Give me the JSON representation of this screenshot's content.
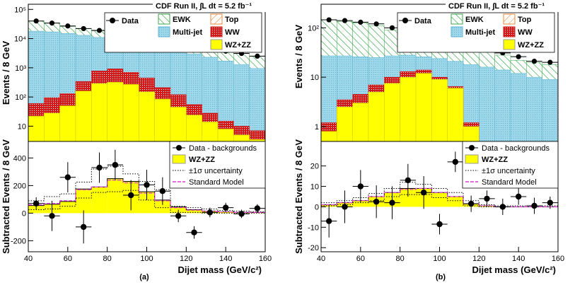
{
  "colors": {
    "multijet": "#9ed7ea",
    "ww": "#d21a1a",
    "wzzz": "#ffff00",
    "ewk": "#3aa84a",
    "top": "#f0883a",
    "sm": "#e23ad6"
  },
  "chart_data": [
    {
      "type": "bar",
      "title": "CDF Run II, ∫L dt = 5.2 fb⁻¹",
      "panel_label": "(a)",
      "xlabel": "Dijet mass (GeV/c²)",
      "top": {
        "ylabel": "Events / 8 GeV",
        "yscale": "log",
        "ylim": [
          3,
          150000
        ],
        "yticks": [
          {
            "v": 10,
            "t": "10"
          },
          {
            "v": 100,
            "t": "10²"
          },
          {
            "v": 1000,
            "t": "10³"
          },
          {
            "v": 10000,
            "t": "10⁴"
          },
          {
            "v": 100000,
            "t": "10⁵"
          }
        ],
        "legend": {
          "data": "Data",
          "ewk": "EWK",
          "top": "Top",
          "multijet": "Multi-jet",
          "ww": "WW",
          "wzzz": "WZ+ZZ"
        },
        "bin_edges": [
          40,
          48,
          56,
          64,
          72,
          80,
          88,
          96,
          104,
          112,
          120,
          128,
          136,
          144,
          152,
          160
        ],
        "stack": {
          "wzzz": [
            22,
            28,
            50,
            160,
            290,
            320,
            270,
            150,
            85,
            45,
            24,
            14,
            8,
            5,
            3.5
          ],
          "ww": [
            60,
            95,
            130,
            340,
            780,
            920,
            700,
            450,
            210,
            120,
            55,
            28,
            15,
            10,
            7
          ],
          "top": [
            72,
            110,
            160,
            380,
            820,
            960,
            740,
            480,
            240,
            160,
            100,
            80,
            60,
            45,
            35
          ],
          "multijet": [
            18000,
            17000,
            15000,
            13000,
            11000,
            9000,
            7500,
            6200,
            5000,
            3800,
            3000,
            2300,
            1700,
            1300,
            950
          ],
          "ewk": [
            40000,
            34000,
            26000,
            22000,
            18500,
            15000,
            12500,
            10200,
            8000,
            6500,
            5400,
            4400,
            3700,
            3100,
            2500
          ]
        },
        "data_points": [
          40000,
          34000,
          27000,
          22000,
          19000,
          15500,
          13000,
          10500,
          8500,
          7000,
          5500,
          4500,
          3700,
          3100,
          2500
        ]
      },
      "bottom": {
        "ylabel": "Subtracted Events / 8 GeV",
        "ylim": [
          -280,
          520
        ],
        "yticks": [
          {
            "v": -200,
            "t": "-200"
          },
          {
            "v": 0,
            "t": "0"
          },
          {
            "v": 200,
            "t": "200"
          },
          {
            "v": 400,
            "t": "400"
          }
        ],
        "xticks": [
          40,
          60,
          80,
          100,
          120,
          140,
          160
        ],
        "legend": {
          "data": "Data - backgrounds",
          "wzzz": "WZ+ZZ",
          "unc": "±1σ uncertainty",
          "sm": "Standard Model"
        },
        "points": [
          {
            "x": 44,
            "y": 70,
            "err": 45
          },
          {
            "x": 52,
            "y": -20,
            "err": 110
          },
          {
            "x": 60,
            "y": 260,
            "err": 110
          },
          {
            "x": 68,
            "y": -100,
            "err": 120
          },
          {
            "x": 76,
            "y": 330,
            "err": 110
          },
          {
            "x": 84,
            "y": 350,
            "err": 110
          },
          {
            "x": 92,
            "y": 130,
            "err": 110
          },
          {
            "x": 100,
            "y": 205,
            "err": 110
          },
          {
            "x": 108,
            "y": 160,
            "err": 100
          },
          {
            "x": 116,
            "y": -20,
            "err": 45
          },
          {
            "x": 124,
            "y": -140,
            "err": 45
          },
          {
            "x": 132,
            "y": 5,
            "err": 35
          },
          {
            "x": 140,
            "y": 40,
            "err": 35
          },
          {
            "x": 148,
            "y": -5,
            "err": 30
          },
          {
            "x": 156,
            "y": 35,
            "err": 30
          }
        ],
        "wzzz_hist": [
          55,
          65,
          85,
          175,
          190,
          250,
          230,
          155,
          95,
          45,
          25,
          15,
          10,
          5,
          5
        ],
        "unc_hi": [
          90,
          120,
          140,
          225,
          320,
          340,
          285,
          230,
          170,
          50,
          40,
          30,
          20,
          15,
          10
        ],
        "unc_lo": [
          25,
          30,
          50,
          110,
          150,
          155,
          165,
          95,
          40,
          5,
          5,
          0,
          0,
          0,
          0
        ],
        "sm_hist": [
          60,
          70,
          90,
          170,
          190,
          240,
          220,
          145,
          90,
          40,
          22,
          14,
          9,
          5,
          5
        ]
      }
    },
    {
      "type": "bar",
      "title": "CDF Run II, ∫L dt = 5.2 fb⁻¹",
      "panel_label": "(b)",
      "xlabel": "Dijet mass (GeV/c²)",
      "top": {
        "ylabel": "Events / 8 GeV",
        "yscale": "log",
        "ylim": [
          0.5,
          300
        ],
        "yticks": [
          {
            "v": 1,
            "t": "1"
          },
          {
            "v": 10,
            "t": "10"
          },
          {
            "v": 100,
            "t": "10²"
          }
        ],
        "legend": {
          "data": "Data",
          "ewk": "EWK",
          "top": "Top",
          "multijet": "Multi-jet",
          "ww": "WW",
          "wzzz": "WZ+ZZ"
        },
        "bin_edges": [
          40,
          48,
          56,
          64,
          72,
          80,
          88,
          96,
          104,
          112,
          120,
          128,
          136,
          144,
          152,
          160
        ],
        "stack": {
          "wzzz": [
            0.8,
            2.5,
            3,
            5,
            7.5,
            10,
            12,
            9,
            6,
            1,
            0,
            0,
            0,
            0,
            0
          ],
          "ww": [
            1.2,
            3.5,
            4.5,
            7,
            10,
            13,
            14,
            10,
            6.5,
            1.2,
            0,
            0,
            0,
            0,
            0
          ],
          "top": [
            13,
            13.5,
            13.5,
            13,
            13,
            13,
            12.5,
            11,
            9,
            8,
            7,
            6,
            5,
            4.5,
            4
          ],
          "multijet": [
            27,
            27,
            26,
            25,
            27,
            28,
            26,
            24,
            21,
            18,
            16,
            14,
            12,
            10,
            9
          ],
          "ewk": [
            145,
            135,
            125,
            110,
            90,
            80,
            70,
            58,
            50,
            40,
            35,
            28,
            22,
            20,
            18
          ]
        },
        "data_points": [
          145,
          140,
          130,
          120,
          100,
          95,
          80,
          70,
          62,
          40,
          38,
          31,
          26,
          21,
          20
        ]
      },
      "bottom": {
        "ylabel": "Subtracted Events / 8 GeV",
        "ylim": [
          -22,
          32
        ],
        "yticks": [
          {
            "v": -20,
            "t": "-20"
          },
          {
            "v": -10,
            "t": "-10"
          },
          {
            "v": 0,
            "t": "0"
          },
          {
            "v": 10,
            "t": "10"
          },
          {
            "v": 20,
            "t": "20"
          }
        ],
        "xticks": [
          40,
          60,
          80,
          100,
          120,
          140,
          160
        ],
        "legend": {
          "data": "Data - backgrounds",
          "wzzz": "WZ+ZZ",
          "unc": "±1σ uncertainty",
          "sm": "Standard Model"
        },
        "points": [
          {
            "x": 44,
            "y": -7,
            "err": 8
          },
          {
            "x": 52,
            "y": 0,
            "err": 8
          },
          {
            "x": 60,
            "y": 10,
            "err": 8
          },
          {
            "x": 68,
            "y": 2.5,
            "err": 8
          },
          {
            "x": 76,
            "y": 2,
            "err": 8
          },
          {
            "x": 84,
            "y": 13,
            "err": 8
          },
          {
            "x": 92,
            "y": 7,
            "err": 8
          },
          {
            "x": 100,
            "y": -8.5,
            "err": 5
          },
          {
            "x": 108,
            "y": 22,
            "err": 5
          },
          {
            "x": 116,
            "y": 1.5,
            "err": 4
          },
          {
            "x": 124,
            "y": 4,
            "err": 4
          },
          {
            "x": 132,
            "y": 0,
            "err": 4
          },
          {
            "x": 140,
            "y": 5,
            "err": 4
          },
          {
            "x": 148,
            "y": 0.5,
            "err": 4
          },
          {
            "x": 156,
            "y": 2,
            "err": 3
          }
        ],
        "wzzz_hist": [
          1,
          2,
          3,
          5,
          7,
          9,
          9,
          7,
          5,
          1.5,
          0.5,
          0,
          0,
          0,
          0
        ],
        "unc_hi": [
          2,
          3,
          4.5,
          6.5,
          9,
          12,
          11,
          9,
          7,
          3,
          1,
          0.5,
          0.5,
          0.5,
          0.5
        ],
        "unc_lo": [
          0.5,
          1,
          2,
          3,
          5,
          6,
          6,
          4.5,
          3,
          0.5,
          0,
          0,
          0,
          0,
          0
        ],
        "sm_hist": [
          1,
          2,
          3,
          5,
          7,
          8.5,
          9,
          7,
          5,
          1.5,
          0.5,
          0,
          0,
          0,
          0
        ]
      }
    }
  ]
}
